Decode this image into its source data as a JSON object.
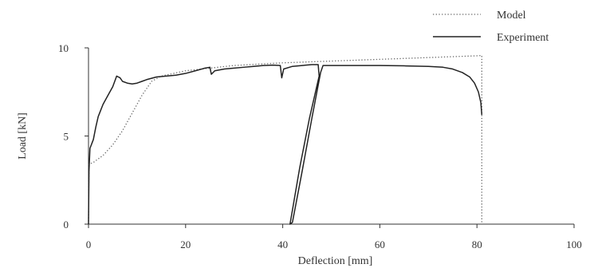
{
  "chart_data": {
    "type": "line",
    "xlabel": "Deflection  [mm]",
    "ylabel": "Load  [kN]",
    "xlim": [
      0,
      100
    ],
    "ylim": [
      0,
      10
    ],
    "xticks": [
      "0",
      "20",
      "40",
      "60",
      "80",
      "100"
    ],
    "yticks": [
      "0",
      "5",
      "10"
    ],
    "grid": false,
    "legend_position": "top-right",
    "series": [
      {
        "name": "Model",
        "style": "dotted",
        "color": "#666666",
        "points": [
          [
            0,
            0
          ],
          [
            0.1,
            3.4
          ],
          [
            1,
            3.5
          ],
          [
            3,
            3.9
          ],
          [
            5,
            4.5
          ],
          [
            7,
            5.3
          ],
          [
            9,
            6.3
          ],
          [
            11,
            7.3
          ],
          [
            13,
            8.1
          ],
          [
            15,
            8.4
          ],
          [
            20,
            8.7
          ],
          [
            30,
            9.0
          ],
          [
            40,
            9.15
          ],
          [
            50,
            9.25
          ],
          [
            60,
            9.35
          ],
          [
            70,
            9.45
          ],
          [
            80,
            9.55
          ],
          [
            81,
            9.57
          ],
          [
            81,
            0
          ]
        ]
      },
      {
        "name": "Experiment",
        "style": "solid",
        "color": "#222222",
        "points": [
          [
            0,
            0
          ],
          [
            0.1,
            3.0
          ],
          [
            0.3,
            4.3
          ],
          [
            1,
            4.8
          ],
          [
            1.5,
            5.5
          ],
          [
            2,
            6.1
          ],
          [
            3,
            6.8
          ],
          [
            4,
            7.3
          ],
          [
            5,
            7.8
          ],
          [
            5.8,
            8.4
          ],
          [
            6.5,
            8.3
          ],
          [
            7,
            8.1
          ],
          [
            8,
            8.0
          ],
          [
            9,
            7.95
          ],
          [
            10,
            8.0
          ],
          [
            11,
            8.1
          ],
          [
            12,
            8.2
          ],
          [
            14,
            8.35
          ],
          [
            16,
            8.4
          ],
          [
            18,
            8.45
          ],
          [
            20,
            8.55
          ],
          [
            22,
            8.7
          ],
          [
            24,
            8.85
          ],
          [
            25,
            8.9
          ],
          [
            25.3,
            8.5
          ],
          [
            26,
            8.7
          ],
          [
            28,
            8.8
          ],
          [
            30,
            8.85
          ],
          [
            32,
            8.9
          ],
          [
            34,
            8.95
          ],
          [
            36,
            9.0
          ],
          [
            38,
            9.02
          ],
          [
            39.5,
            9.0
          ],
          [
            39.8,
            8.3
          ],
          [
            40.2,
            8.8
          ],
          [
            42,
            8.95
          ],
          [
            44,
            9.0
          ],
          [
            46,
            9.05
          ],
          [
            47.3,
            9.05
          ],
          [
            47.5,
            8.4
          ],
          [
            45.5,
            6.0
          ],
          [
            43.5,
            3.2
          ],
          [
            41.5,
            0.0
          ],
          [
            42,
            0.1
          ],
          [
            44,
            3.0
          ],
          [
            46,
            6.0
          ],
          [
            47.8,
            8.6
          ],
          [
            48.3,
            9.0
          ],
          [
            50,
            9.0
          ],
          [
            55,
            9.0
          ],
          [
            60,
            9.0
          ],
          [
            65,
            8.98
          ],
          [
            70,
            8.95
          ],
          [
            73,
            8.9
          ],
          [
            75,
            8.8
          ],
          [
            77,
            8.6
          ],
          [
            78.5,
            8.35
          ],
          [
            79.5,
            8.0
          ],
          [
            80.3,
            7.5
          ],
          [
            80.8,
            6.9
          ],
          [
            81,
            6.2
          ]
        ]
      }
    ]
  }
}
